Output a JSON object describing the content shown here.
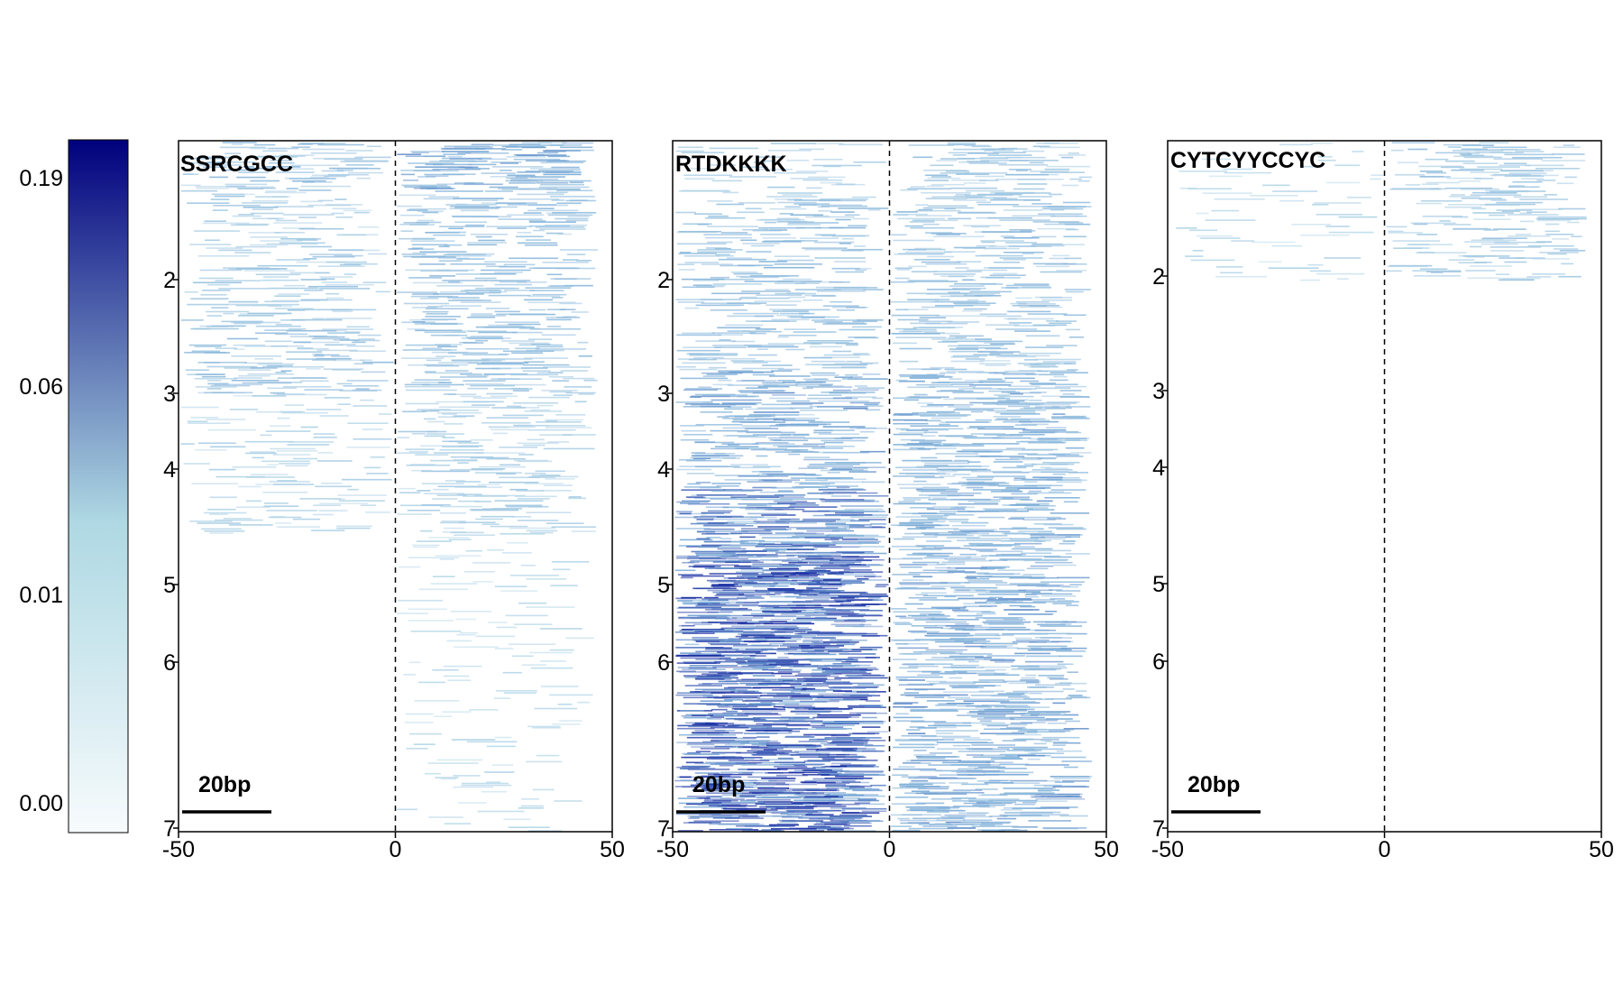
{
  "colorbar": {
    "tick_labels": [
      "0.19",
      "0.06",
      "0.01",
      "0.00"
    ],
    "tick_values": [
      0.19,
      0.06,
      0.01,
      0.0
    ],
    "colors": {
      "low": "#f7fbfd",
      "mid": "#aed8e3",
      "high": "#00007d"
    }
  },
  "chart_data": [
    {
      "type": "heatmap",
      "title": "SSRCGCC",
      "x_ticks": [
        "-50",
        "0",
        "50"
      ],
      "y_ticks": [
        "2",
        "3",
        "4",
        "5",
        "6",
        "7"
      ],
      "xlim": [
        -50,
        50
      ],
      "scale_bar_label": "20bp",
      "scale_bar_length": 20,
      "center_line": 0,
      "intensity_profile": [
        {
          "range": [
            1.0,
            1.4
          ],
          "left": 0.3,
          "right": 0.45
        },
        {
          "range": [
            1.4,
            2.6
          ],
          "left": 0.22,
          "right": 0.32
        },
        {
          "range": [
            2.6,
            3.2
          ],
          "left": 0.3,
          "right": 0.3
        },
        {
          "range": [
            3.2,
            4.4
          ],
          "left": 0.12,
          "right": 0.18
        },
        {
          "range": [
            4.4,
            7.0
          ],
          "left": 0.01,
          "right": 0.08
        }
      ]
    },
    {
      "type": "heatmap",
      "title": "RTDKKKK",
      "x_ticks": [
        "-50",
        "0",
        "50"
      ],
      "y_ticks": [
        "2",
        "3",
        "4",
        "5",
        "6",
        "7"
      ],
      "xlim": [
        -50,
        50
      ],
      "scale_bar_label": "20bp",
      "scale_bar_length": 20,
      "center_line": 0,
      "intensity_profile": [
        {
          "range": [
            1.0,
            1.5
          ],
          "left": 0.15,
          "right": 0.25
        },
        {
          "range": [
            1.5,
            3.0
          ],
          "left": 0.32,
          "right": 0.3
        },
        {
          "range": [
            3.0,
            4.0
          ],
          "left": 0.45,
          "right": 0.4
        },
        {
          "range": [
            4.0,
            4.6
          ],
          "left": 0.6,
          "right": 0.42
        },
        {
          "range": [
            4.6,
            7.0
          ],
          "left": 0.78,
          "right": 0.45
        }
      ]
    },
    {
      "type": "heatmap",
      "title": "CYTCYYCCYC",
      "x_ticks": [
        "-50",
        "0",
        "50"
      ],
      "y_ticks": [
        "2",
        "3",
        "4",
        "5",
        "6",
        "7"
      ],
      "xlim": [
        -50,
        50
      ],
      "scale_bar_label": "20bp",
      "scale_bar_length": 20,
      "center_line": 0,
      "intensity_profile": [
        {
          "range": [
            1.0,
            1.4
          ],
          "left": 0.05,
          "right": 0.25
        },
        {
          "range": [
            1.4,
            2.2
          ],
          "left": 0.08,
          "right": 0.22
        },
        {
          "range": [
            2.2,
            7.0
          ],
          "left": 0.01,
          "right": 0.025
        }
      ]
    }
  ]
}
